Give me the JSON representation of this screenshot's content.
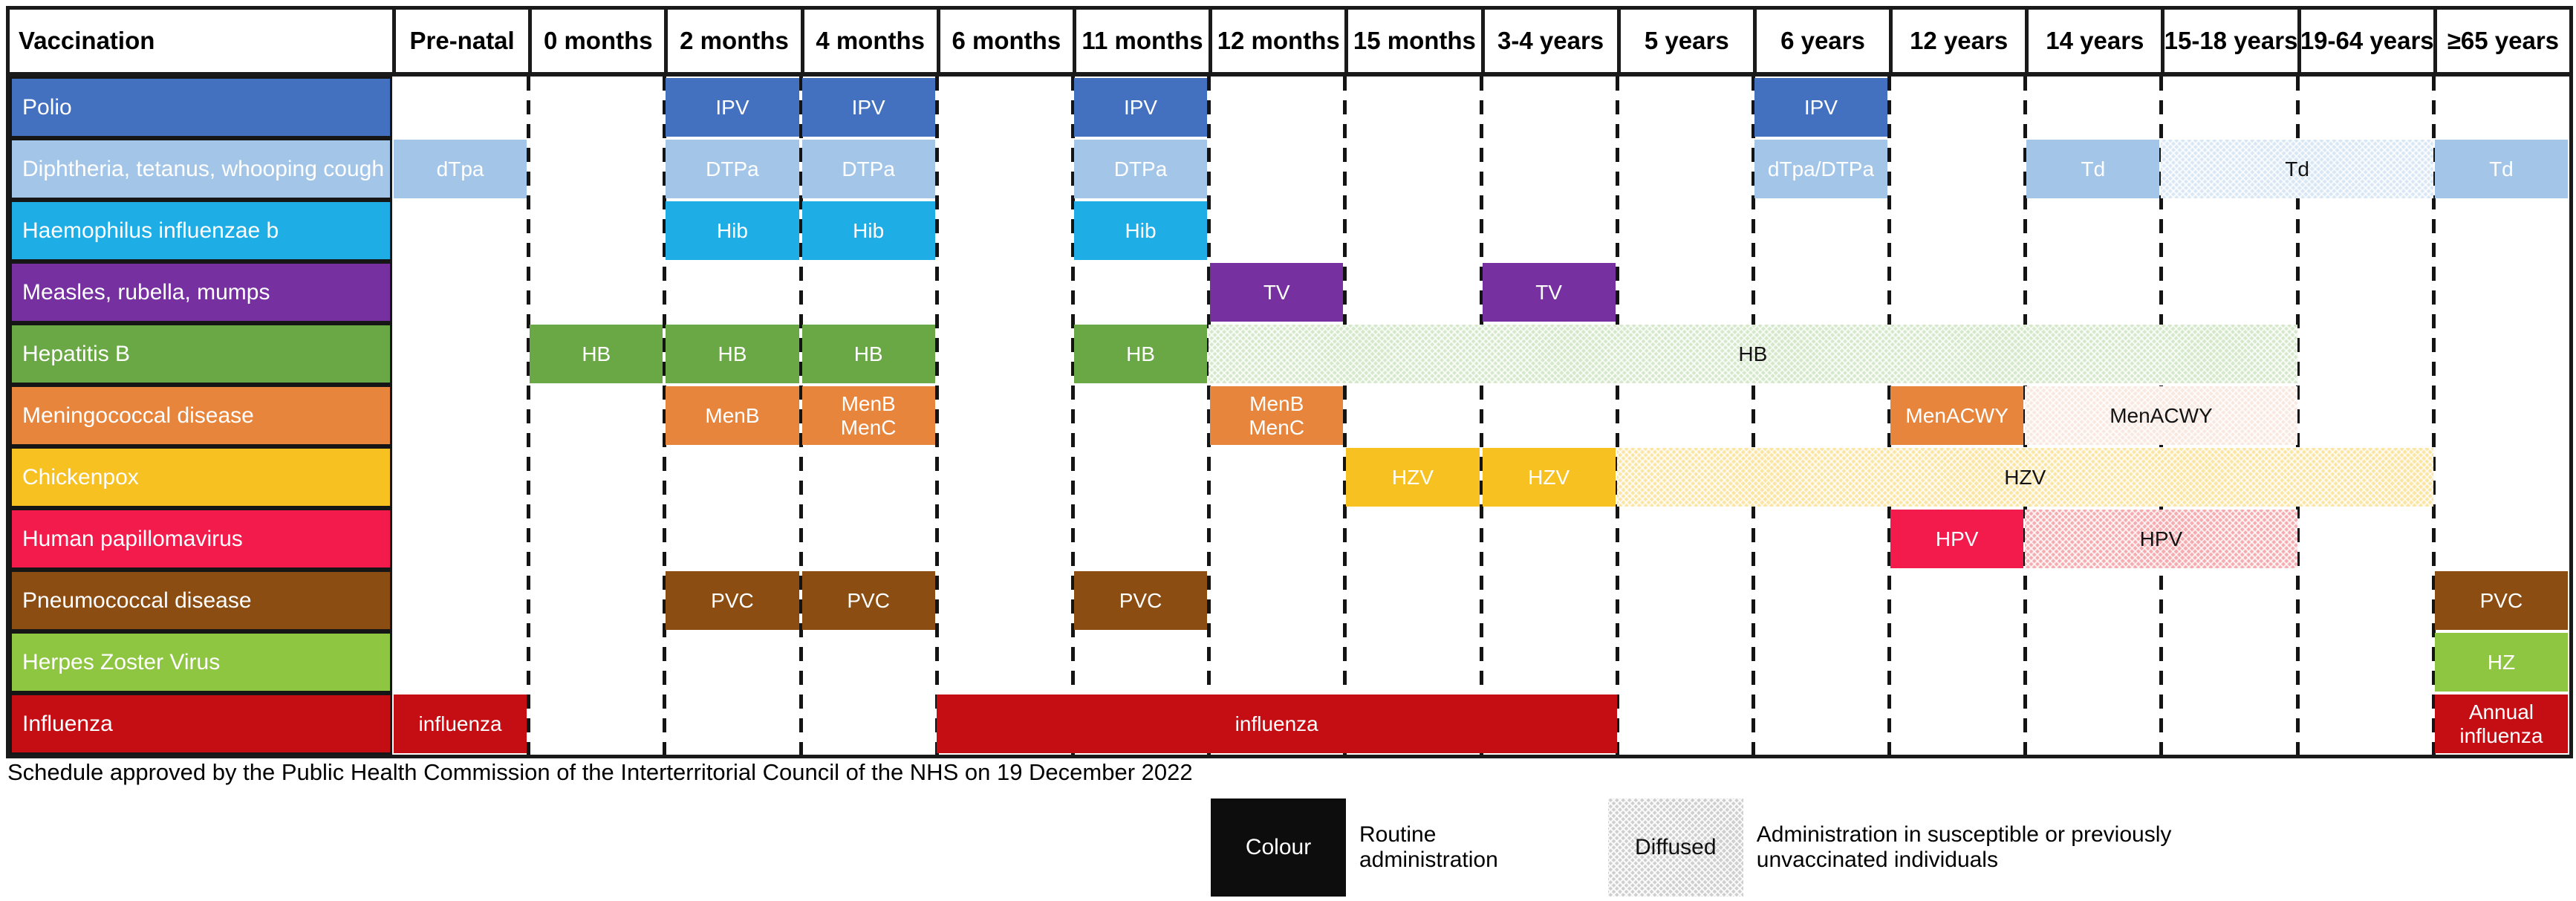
{
  "footer": {
    "note": "Schedule approved by the Public Health Commission of the Interterritorial Council of the NHS on 19 December 2022"
  },
  "legend": {
    "colour_box_label": "Colour",
    "routine_label": "Routine\nadministration",
    "diffused_box_label": "Diffused",
    "diffused_label": "Administration in susceptible or previously\nunvaccinated individuals"
  },
  "colors": {
    "border": "#1a1a1a",
    "solid_text": "#ffffff",
    "diffused_text": "#141414"
  },
  "chart_data": {
    "type": "table",
    "title": "Vaccination schedule",
    "legend_position": "bottom",
    "columns": [
      "Vaccination",
      "Pre-natal",
      "0 months",
      "2 months",
      "4 months",
      "6 months",
      "11 months",
      "12 months",
      "15 months",
      "3-4 years",
      "5 years",
      "6 years",
      "12 years",
      "14 years",
      "15-18 years",
      "19-64 years",
      "≥65 years"
    ],
    "age_columns": [
      "Pre-natal",
      "0 months",
      "2 months",
      "4 months",
      "6 months",
      "11 months",
      "12 months",
      "15 months",
      "3-4 years",
      "5 years",
      "6 years",
      "12 years",
      "14 years",
      "15-18 years",
      "19-64 years",
      "≥65 years"
    ],
    "styles": {
      "routine": "solid colour",
      "diffused": "administration in susceptible or previously unvaccinated individuals"
    },
    "rows": [
      {
        "label": "Polio",
        "color": "#4470c0",
        "bars": [
          {
            "label": "IPV",
            "start": 2,
            "span": 1,
            "style": "routine"
          },
          {
            "label": "IPV",
            "start": 3,
            "span": 1,
            "style": "routine"
          },
          {
            "label": "IPV",
            "start": 5,
            "span": 1,
            "style": "routine"
          },
          {
            "label": "IPV",
            "start": 10,
            "span": 1,
            "style": "routine"
          }
        ]
      },
      {
        "label": "Diphtheria, tetanus, whooping cough",
        "color": "#a3c6e8",
        "bars": [
          {
            "label": "dTpa",
            "start": 0,
            "span": 1,
            "style": "routine"
          },
          {
            "label": "DTPa",
            "start": 2,
            "span": 1,
            "style": "routine"
          },
          {
            "label": "DTPa",
            "start": 3,
            "span": 1,
            "style": "routine"
          },
          {
            "label": "DTPa",
            "start": 5,
            "span": 1,
            "style": "routine"
          },
          {
            "label": "dTpa/DTPa",
            "start": 10,
            "span": 1,
            "style": "routine"
          },
          {
            "label": "Td",
            "start": 12,
            "span": 1,
            "style": "routine"
          },
          {
            "label": "Td",
            "start": 13,
            "span": 2,
            "style": "diffused",
            "fill": "#d9e7f5"
          },
          {
            "label": "Td",
            "start": 15,
            "span": 1,
            "style": "routine"
          }
        ]
      },
      {
        "label": "Haemophilus influenzae b",
        "color": "#1fade6",
        "bars": [
          {
            "label": "Hib",
            "start": 2,
            "span": 1,
            "style": "routine"
          },
          {
            "label": "Hib",
            "start": 3,
            "span": 1,
            "style": "routine"
          },
          {
            "label": "Hib",
            "start": 5,
            "span": 1,
            "style": "routine"
          }
        ]
      },
      {
        "label": "Measles, rubella, mumps",
        "color": "#7630a0",
        "bars": [
          {
            "label": "TV",
            "start": 6,
            "span": 1,
            "style": "routine"
          },
          {
            "label": "TV",
            "start": 8,
            "span": 1,
            "style": "routine"
          }
        ]
      },
      {
        "label": "Hepatitis B",
        "color": "#6aa845",
        "bars": [
          {
            "label": "HB",
            "start": 1,
            "span": 1,
            "style": "routine"
          },
          {
            "label": "HB",
            "start": 2,
            "span": 1,
            "style": "routine"
          },
          {
            "label": "HB",
            "start": 3,
            "span": 1,
            "style": "routine"
          },
          {
            "label": "HB",
            "start": 5,
            "span": 1,
            "style": "routine"
          },
          {
            "label": "HB",
            "start": 6,
            "span": 8,
            "style": "diffused",
            "fill": "#d5e8ca"
          }
        ]
      },
      {
        "label": "Meningococcal disease",
        "color": "#e8853c",
        "bars": [
          {
            "label": "MenB",
            "start": 2,
            "span": 1,
            "style": "routine"
          },
          {
            "label": "MenB\nMenC",
            "start": 3,
            "span": 1,
            "style": "routine"
          },
          {
            "label": "MenB\nMenC",
            "start": 6,
            "span": 1,
            "style": "routine"
          },
          {
            "label": "MenACWY",
            "start": 11,
            "span": 1,
            "style": "routine"
          },
          {
            "label": "MenACWY",
            "start": 12,
            "span": 2,
            "style": "diffused",
            "fill": "#f9e8df"
          }
        ]
      },
      {
        "label": "Chickenpox",
        "color": "#f6c121",
        "bars": [
          {
            "label": "HZV",
            "start": 7,
            "span": 1,
            "style": "routine"
          },
          {
            "label": "HZV",
            "start": 8,
            "span": 1,
            "style": "routine"
          },
          {
            "label": "HZV",
            "start": 9,
            "span": 6,
            "style": "diffused",
            "fill": "#fbe5a2"
          }
        ]
      },
      {
        "label": "Human papillomavirus",
        "color": "#f31a4c",
        "bars": [
          {
            "label": "HPV",
            "start": 11,
            "span": 1,
            "style": "routine"
          },
          {
            "label": "HPV",
            "start": 12,
            "span": 2,
            "style": "diffused",
            "fill": "#f5acb1"
          }
        ]
      },
      {
        "label": "Pneumococcal disease",
        "color": "#8b4d12",
        "bars": [
          {
            "label": "PVC",
            "start": 2,
            "span": 1,
            "style": "routine"
          },
          {
            "label": "PVC",
            "start": 3,
            "span": 1,
            "style": "routine"
          },
          {
            "label": "PVC",
            "start": 5,
            "span": 1,
            "style": "routine"
          },
          {
            "label": "PVC",
            "start": 15,
            "span": 1,
            "style": "routine"
          }
        ]
      },
      {
        "label": "Herpes Zoster Virus",
        "color": "#8ec641",
        "bars": [
          {
            "label": "HZ",
            "start": 15,
            "span": 1,
            "style": "routine"
          }
        ]
      },
      {
        "label": "Influenza",
        "color": "#c50d14",
        "bars": [
          {
            "label": "influenza",
            "start": 0,
            "span": 1,
            "style": "routine"
          },
          {
            "label": "influenza",
            "start": 4,
            "span": 5,
            "style": "routine"
          },
          {
            "label": "Annual\ninfluenza",
            "start": 15,
            "span": 1,
            "style": "routine"
          }
        ]
      }
    ]
  }
}
